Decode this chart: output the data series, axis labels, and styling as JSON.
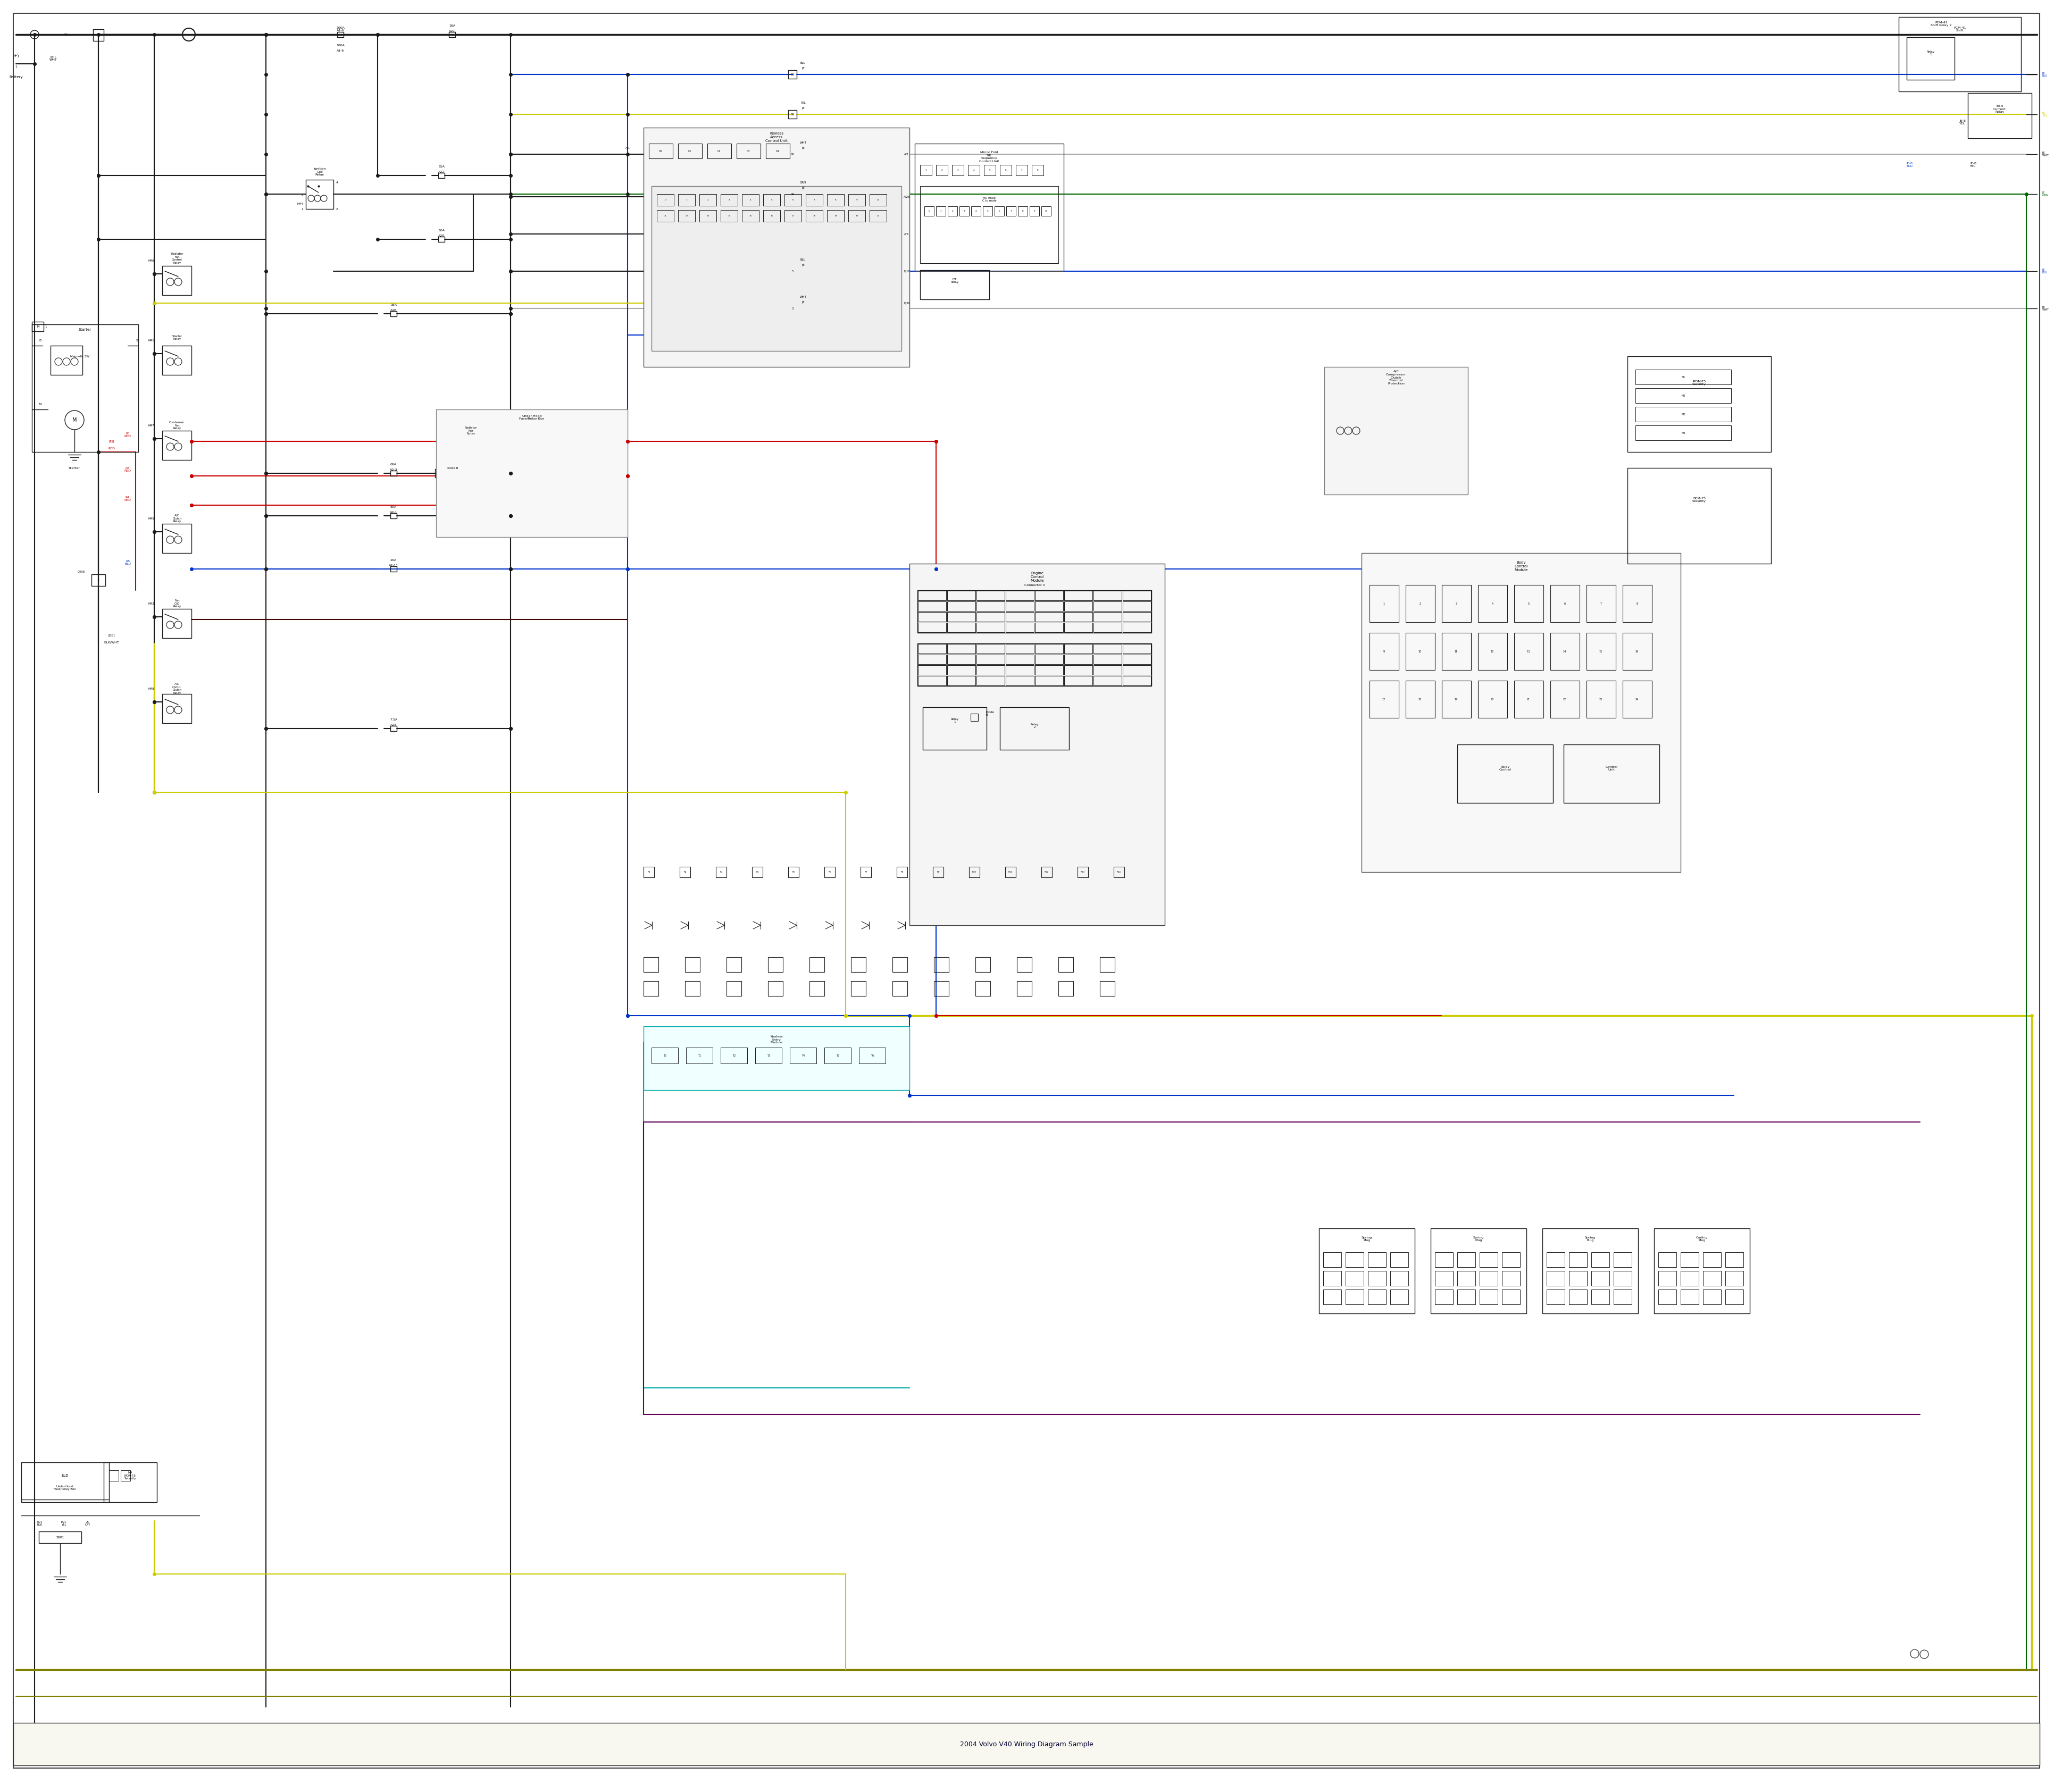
{
  "bg": "#ffffff",
  "BLK": "#1a1a1a",
  "RED": "#cc0000",
  "BLU": "#0033cc",
  "YEL": "#cccc00",
  "GRN": "#006600",
  "CYN": "#00aaaa",
  "PUR": "#660055",
  "OLV": "#808000",
  "GRY": "#aaaaaa",
  "WHT": "#cccccc",
  "fig_w": 38.4,
  "fig_h": 33.5
}
